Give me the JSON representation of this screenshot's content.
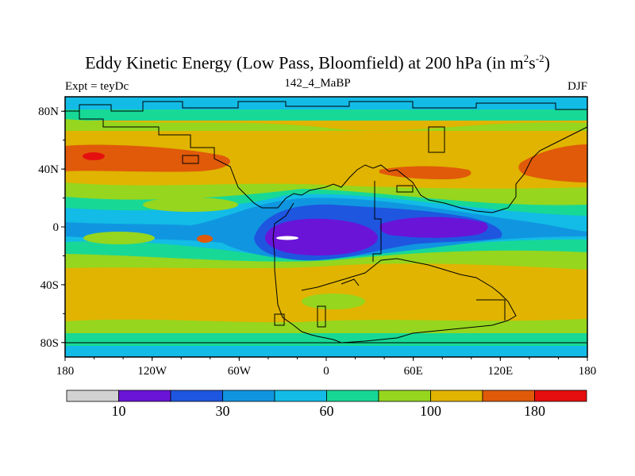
{
  "header": {
    "title_main": "Eddy Kinetic Energy (Low Pass, Bloomfield) at 200 hPa (in m",
    "title_sup1": "2",
    "title_mid": "s",
    "title_sup2": "-2",
    "title_end": ")",
    "experiment": "Expt = teyDc",
    "period": "142_4_MaBP",
    "season": "DJF"
  },
  "axes": {
    "x_ticks": [
      "180",
      "120W",
      "60W",
      "0",
      "60E",
      "120E",
      "180"
    ],
    "y_ticks": [
      "80N",
      "40N",
      "0",
      "40S",
      "80S"
    ]
  },
  "colorbar": {
    "labels": [
      "10",
      "30",
      "60",
      "100",
      "180"
    ],
    "colors": [
      "#d2d2d2",
      "#6a14d8",
      "#1e56e0",
      "#1096e0",
      "#12bce6",
      "#18d896",
      "#96d61e",
      "#e0b400",
      "#e05a0a",
      "#e60f0f"
    ]
  }
}
